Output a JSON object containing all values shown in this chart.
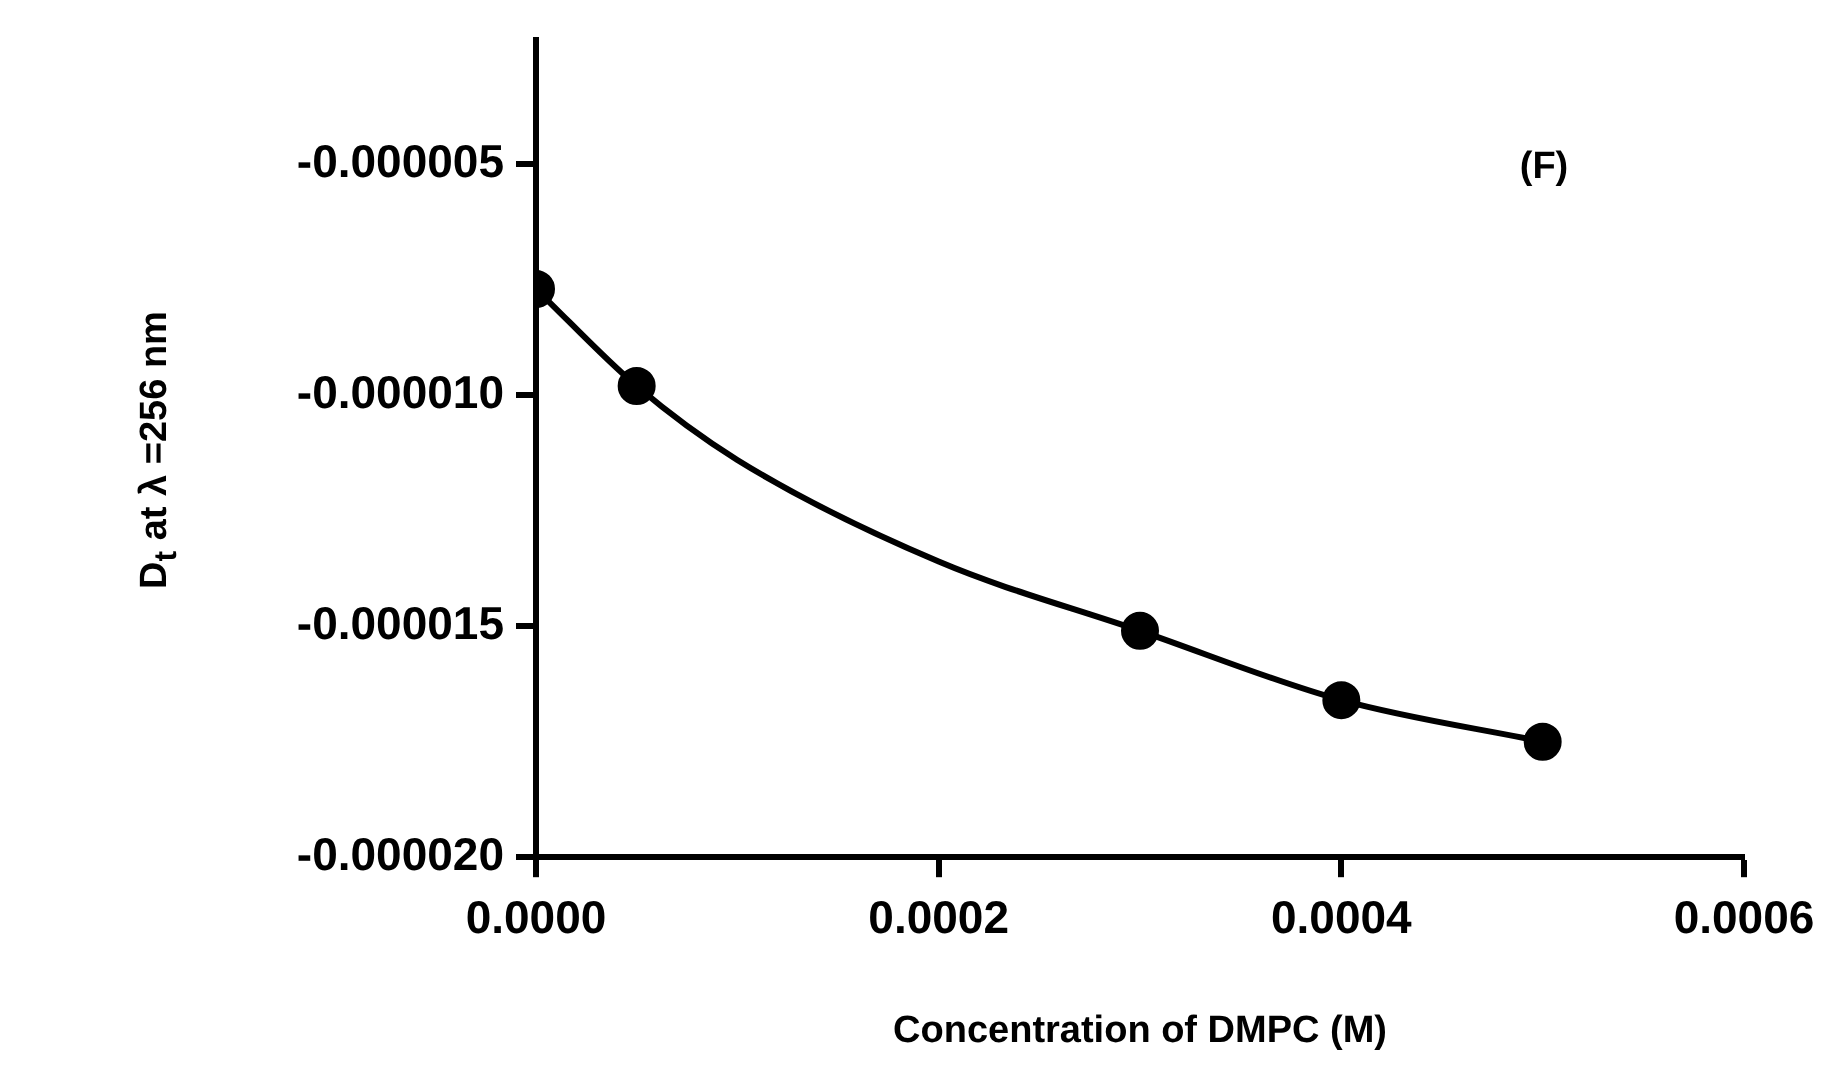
{
  "chart_data": {
    "type": "scatter",
    "xlabel": "Concentration of DMPC (M)",
    "ylabel": "D$_{t}$ at λ =256 nm",
    "annotations": [
      "(F)"
    ],
    "xlim": [
      0,
      0.0006
    ],
    "xticks": [
      {
        "value": 0,
        "label": "0.0000"
      },
      {
        "value": 0.0002,
        "label": "0.0002"
      },
      {
        "value": 0.0004,
        "label": "0.0004"
      },
      {
        "value": 0.0006,
        "label": "0.0006"
      }
    ],
    "ylim": [
      -2e-05,
      -2.3e-06
    ],
    "yticks": [
      {
        "value": -2e-05,
        "label": "-0.000020"
      },
      {
        "value": -1.5e-05,
        "label": "-0.000015"
      },
      {
        "value": -1e-05,
        "label": "-0.000010"
      },
      {
        "value": -5e-06,
        "label": "-0.000005"
      }
    ],
    "grid": false,
    "legend": false,
    "series": [
      {
        "marker": "circle",
        "color": "#000000",
        "x": [
          0,
          5e-05,
          0.0003,
          0.0004,
          0.0005
        ],
        "values": [
          -7.7e-06,
          -9.8e-06,
          -1.51e-05,
          -1.66e-05,
          -1.75e-05
        ]
      },
      {
        "type": "line",
        "marker": "none",
        "color": "#000000",
        "x": [
          0,
          5e-05,
          0.0001,
          0.0002,
          0.0003,
          0.0004,
          0.0005
        ],
        "values": [
          -7.7e-06,
          -9.8e-06,
          -1.14e-05,
          -1.36e-05,
          -1.51e-05,
          -1.66e-05,
          -1.75e-05
        ]
      }
    ]
  }
}
